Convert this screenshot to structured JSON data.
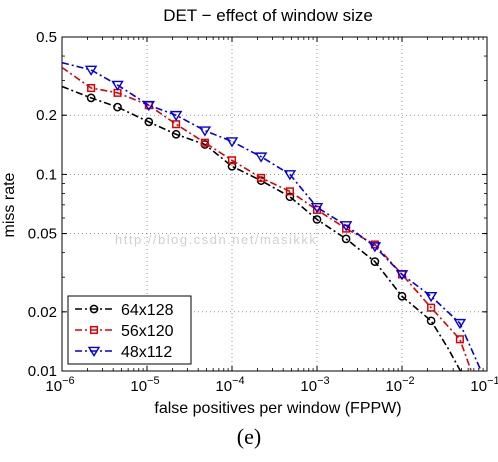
{
  "chart_data": {
    "type": "line",
    "title": "DET − effect of window size",
    "xlabel": "false positives per window (FPPW)",
    "ylabel": "miss rate",
    "x_scale": "log",
    "y_scale": "log",
    "xlim": [
      1e-06,
      0.1
    ],
    "ylim": [
      0.01,
      0.5
    ],
    "x_ticks": [
      {
        "value": 1e-06,
        "base": "10",
        "exp": "−6"
      },
      {
        "value": 1e-05,
        "base": "10",
        "exp": "−5"
      },
      {
        "value": 0.0001,
        "base": "10",
        "exp": "−4"
      },
      {
        "value": 0.001,
        "base": "10",
        "exp": "−3"
      },
      {
        "value": 0.01,
        "base": "10",
        "exp": "−2"
      },
      {
        "value": 0.1,
        "base": "10",
        "exp": "−1"
      }
    ],
    "y_ticks": [
      {
        "value": 0.01,
        "label": "0.01"
      },
      {
        "value": 0.02,
        "label": "0.02"
      },
      {
        "value": 0.05,
        "label": "0.05"
      },
      {
        "value": 0.1,
        "label": "0.1"
      },
      {
        "value": 0.2,
        "label": "0.2"
      },
      {
        "value": 0.5,
        "label": "0.5"
      }
    ],
    "grid": true,
    "legend_position": "bottom-left",
    "series": [
      {
        "name": "64x128",
        "color": "#000000",
        "marker": "circle",
        "line": [
          [
            1e-06,
            0.28
          ],
          [
            2.2e-06,
            0.245
          ],
          [
            4.5e-06,
            0.22
          ],
          [
            1.05e-05,
            0.185
          ],
          [
            2.2e-05,
            0.16
          ],
          [
            4.8e-05,
            0.142
          ],
          [
            0.0001,
            0.11
          ],
          [
            0.00022,
            0.093
          ],
          [
            0.00048,
            0.077
          ],
          [
            0.001,
            0.059
          ],
          [
            0.0022,
            0.047
          ],
          [
            0.0048,
            0.036
          ],
          [
            0.01,
            0.024
          ],
          [
            0.022,
            0.018
          ],
          [
            0.035,
            0.013
          ],
          [
            0.052,
            0.0095
          ]
        ],
        "markers": [
          [
            2.2e-06,
            0.245
          ],
          [
            4.5e-06,
            0.22
          ],
          [
            1.05e-05,
            0.185
          ],
          [
            2.2e-05,
            0.16
          ],
          [
            4.8e-05,
            0.142
          ],
          [
            0.0001,
            0.11
          ],
          [
            0.00022,
            0.093
          ],
          [
            0.00048,
            0.077
          ],
          [
            0.001,
            0.059
          ],
          [
            0.0022,
            0.047
          ],
          [
            0.0048,
            0.036
          ],
          [
            0.01,
            0.024
          ],
          [
            0.022,
            0.018
          ]
        ]
      },
      {
        "name": "56x120",
        "color": "#e00000",
        "marker": "square",
        "line": [
          [
            1e-06,
            0.35
          ],
          [
            2.2e-06,
            0.275
          ],
          [
            4.5e-06,
            0.26
          ],
          [
            1.05e-05,
            0.225
          ],
          [
            2.2e-05,
            0.18
          ],
          [
            4.8e-05,
            0.145
          ],
          [
            0.0001,
            0.118
          ],
          [
            0.00022,
            0.096
          ],
          [
            0.00048,
            0.082
          ],
          [
            0.001,
            0.066
          ],
          [
            0.0022,
            0.053
          ],
          [
            0.0048,
            0.044
          ],
          [
            0.01,
            0.031
          ],
          [
            0.022,
            0.021
          ],
          [
            0.048,
            0.0145
          ],
          [
            0.068,
            0.0095
          ]
        ],
        "markers": [
          [
            2.2e-06,
            0.275
          ],
          [
            4.5e-06,
            0.26
          ],
          [
            1.05e-05,
            0.225
          ],
          [
            2.2e-05,
            0.18
          ],
          [
            4.8e-05,
            0.145
          ],
          [
            0.0001,
            0.118
          ],
          [
            0.00022,
            0.096
          ],
          [
            0.00048,
            0.082
          ],
          [
            0.001,
            0.066
          ],
          [
            0.0022,
            0.053
          ],
          [
            0.0048,
            0.044
          ],
          [
            0.01,
            0.031
          ],
          [
            0.022,
            0.021
          ],
          [
            0.048,
            0.0145
          ]
        ]
      },
      {
        "name": "48x112",
        "color": "#0000e0",
        "marker": "triangle-down",
        "line": [
          [
            1e-06,
            0.37
          ],
          [
            2.2e-06,
            0.34
          ],
          [
            4.5e-06,
            0.285
          ],
          [
            1.05e-05,
            0.225
          ],
          [
            2.2e-05,
            0.2
          ],
          [
            4.8e-05,
            0.167
          ],
          [
            0.0001,
            0.147
          ],
          [
            0.00022,
            0.123
          ],
          [
            0.00048,
            0.1
          ],
          [
            0.001,
            0.068
          ],
          [
            0.0022,
            0.055
          ],
          [
            0.0048,
            0.043
          ],
          [
            0.01,
            0.031
          ],
          [
            0.022,
            0.024
          ],
          [
            0.048,
            0.0175
          ],
          [
            0.09,
            0.0095
          ]
        ],
        "markers": [
          [
            2.2e-06,
            0.34
          ],
          [
            4.5e-06,
            0.285
          ],
          [
            1.05e-05,
            0.225
          ],
          [
            2.2e-05,
            0.2
          ],
          [
            4.8e-05,
            0.167
          ],
          [
            0.0001,
            0.147
          ],
          [
            0.00022,
            0.123
          ],
          [
            0.00048,
            0.1
          ],
          [
            0.001,
            0.068
          ],
          [
            0.0022,
            0.055
          ],
          [
            0.0048,
            0.043
          ],
          [
            0.01,
            0.031
          ],
          [
            0.022,
            0.024
          ],
          [
            0.048,
            0.0175
          ]
        ]
      }
    ]
  },
  "caption": "(e)",
  "watermark": "http://blog.csdn.net/masikkk"
}
